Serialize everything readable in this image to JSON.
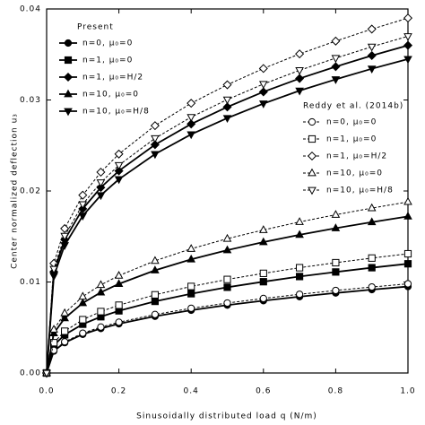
{
  "chart_data": {
    "type": "line",
    "xlabel": "Sinusoidally distributed load q (N/m)",
    "ylabel": "Center normalized deflection u₃",
    "xlim": [
      0,
      1
    ],
    "ylim": [
      0,
      0.04
    ],
    "xticks": [
      {
        "value": 0,
        "label": "0.0"
      },
      0.2,
      0.4,
      0.6,
      0.8,
      {
        "value": 1,
        "label": "1.0"
      }
    ],
    "yticks": [
      {
        "value": 0,
        "label": "0.00"
      },
      {
        "value": 0.01,
        "label": "0.01"
      },
      {
        "value": 0.02,
        "label": "0.02"
      },
      {
        "value": 0.03,
        "label": "0.03"
      },
      {
        "value": 0.04,
        "label": "0.04"
      }
    ],
    "legend_titles": [
      "Present",
      "Reddy et al. (2014b)"
    ],
    "x": [
      0,
      0.02,
      0.05,
      0.1,
      0.15,
      0.2,
      0.3,
      0.4,
      0.5,
      0.6,
      0.7,
      0.8,
      0.9,
      1.0
    ],
    "series": [
      {
        "name": "n=0, μ₀=0",
        "color": "#000000",
        "marker": "circle",
        "filled": true,
        "values": [
          0,
          0.00241,
          0.00333,
          0.00425,
          0.00489,
          0.00541,
          0.00623,
          0.0069,
          0.00746,
          0.00794,
          0.00839,
          0.00879,
          0.00916,
          0.0095
        ]
      },
      {
        "name": "n=1, μ₀=0",
        "color": "#000000",
        "marker": "square",
        "filled": true,
        "values": [
          0,
          0.00305,
          0.0042,
          0.00536,
          0.00618,
          0.00683,
          0.00787,
          0.00871,
          0.00942,
          0.01003,
          0.0106,
          0.0111,
          0.01157,
          0.012
        ]
      },
      {
        "name": "n=1, μ₀=H/2",
        "color": "#000000",
        "marker": "diamond",
        "filled": true,
        "values": [
          0,
          0.01112,
          0.01465,
          0.01804,
          0.02038,
          0.02221,
          0.02509,
          0.02736,
          0.02923,
          0.03089,
          0.03236,
          0.03366,
          0.03488,
          0.036
        ]
      },
      {
        "name": "n=10, μ₀=0",
        "color": "#000000",
        "marker": "triangle-up",
        "filled": true,
        "values": [
          0,
          0.00437,
          0.00602,
          0.00769,
          0.00886,
          0.00979,
          0.01128,
          0.01249,
          0.0135,
          0.01438,
          0.01519,
          0.01591,
          0.01658,
          0.0172
        ]
      },
      {
        "name": "n=10, μ₀=H/8",
        "color": "#000000",
        "marker": "triangle-down",
        "filled": true,
        "values": [
          0,
          0.01066,
          0.01404,
          0.01728,
          0.01953,
          0.02129,
          0.02405,
          0.02622,
          0.02801,
          0.0296,
          0.03102,
          0.03226,
          0.03343,
          0.0345
        ]
      },
      {
        "name": "n=0, μ₀=0",
        "color": "#000000",
        "marker": "circle",
        "filled": false,
        "values": [
          0,
          0.00249,
          0.00343,
          0.00438,
          0.00505,
          0.00558,
          0.00643,
          0.00711,
          0.00769,
          0.00819,
          0.00865,
          0.00907,
          0.00945,
          0.0098
        ]
      },
      {
        "name": "n=1, μ₀=0",
        "color": "#000000",
        "marker": "square",
        "filled": false,
        "values": [
          0,
          0.00333,
          0.00459,
          0.00586,
          0.00675,
          0.00745,
          0.00859,
          0.00951,
          0.01028,
          0.01095,
          0.01157,
          0.01212,
          0.01263,
          0.0131
        ]
      },
      {
        "name": "n=1, μ₀=H/2",
        "color": "#000000",
        "marker": "diamond",
        "filled": false,
        "values": [
          0,
          0.01205,
          0.01587,
          0.01954,
          0.02207,
          0.02406,
          0.02718,
          0.02964,
          0.03167,
          0.03346,
          0.03506,
          0.03647,
          0.03779,
          0.039
        ]
      },
      {
        "name": "n=10, μ₀=0",
        "color": "#000000",
        "marker": "triangle-up",
        "filled": false,
        "values": [
          0,
          0.00478,
          0.00658,
          0.0084,
          0.00968,
          0.0107,
          0.01233,
          0.01365,
          0.01476,
          0.01572,
          0.0166,
          0.01739,
          0.01812,
          0.0188
        ]
      },
      {
        "name": "n=10, μ₀=H/8",
        "color": "#000000",
        "marker": "triangle-down",
        "filled": false,
        "values": [
          0,
          0.01143,
          0.01506,
          0.01854,
          0.02094,
          0.02283,
          0.02579,
          0.02812,
          0.03004,
          0.03175,
          0.03326,
          0.0346,
          0.03585,
          0.037
        ]
      }
    ]
  }
}
